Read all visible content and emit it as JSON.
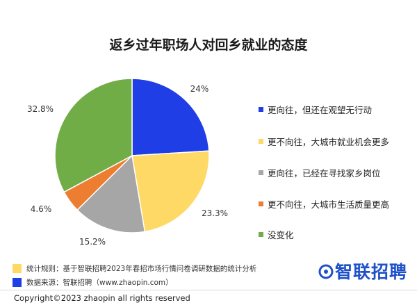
{
  "chart_data": {
    "type": "pie",
    "title": "返乡过年职场人对回乡就业的态度",
    "categories": [
      "更向往，但还在观望无行动",
      "更不向往，大城市就业机会更多",
      "更向往，已经在寻找家乡岗位",
      "更不向往，大城市生活质量更高",
      "没变化"
    ],
    "values": [
      24,
      23.3,
      15.2,
      4.6,
      32.8
    ],
    "value_labels": [
      "24%",
      "23.3%",
      "15.2%",
      "4.6%",
      "32.8%"
    ],
    "colors": [
      "#1f3ee6",
      "#ffd966",
      "#a6a6a6",
      "#ed7d31",
      "#70ad47"
    ],
    "legend_position": "right"
  },
  "notes": [
    {
      "text": "统计规则：基于智联招聘2023年春招市场行情问卷调研数据的统计分析",
      "color": "#ffd966"
    },
    {
      "text": "数据来源：智联招聘（www.zhaopin.com）",
      "color": "#1f3ee6"
    }
  ],
  "logo": {
    "text": "智联招聘",
    "icon": "zhaopin-logo-icon",
    "color": "#1e50c8"
  },
  "footer": {
    "copyright": "Copyright©2023 zhaopin all rights reserved"
  }
}
